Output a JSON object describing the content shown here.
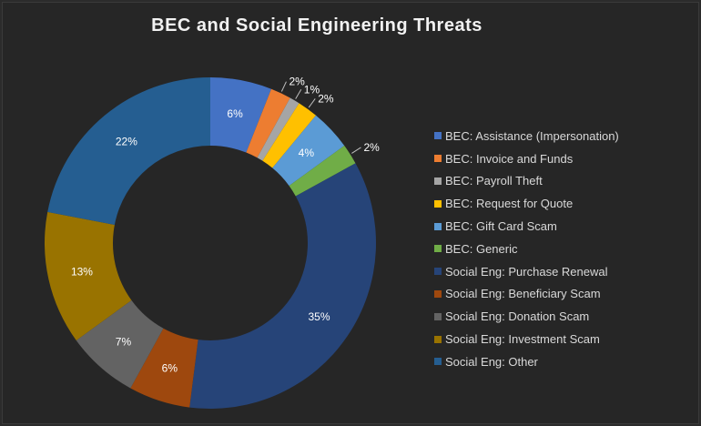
{
  "chart_data": {
    "type": "pie",
    "title": "BEC and Social Engineering Threats",
    "donut": true,
    "legend_position": "right",
    "slices": [
      {
        "label": "BEC: Assistance (Impersonation)",
        "value": 6,
        "display": "6%",
        "color": "#4472c4"
      },
      {
        "label": "BEC: Invoice and Funds",
        "value": 2,
        "display": "2%",
        "color": "#ed7d31"
      },
      {
        "label": "BEC: Payroll Theft",
        "value": 1,
        "display": "1%",
        "color": "#a5a5a5"
      },
      {
        "label": "BEC: Request for Quote",
        "value": 2,
        "display": "2%",
        "color": "#ffc000"
      },
      {
        "label": "BEC: Gift Card Scam",
        "value": 4,
        "display": "4%",
        "color": "#5b9bd5"
      },
      {
        "label": "BEC: Generic",
        "value": 2,
        "display": "2%",
        "color": "#70ad47"
      },
      {
        "label": "Social Eng: Purchase Renewal",
        "value": 35,
        "display": "35%",
        "color": "#264478"
      },
      {
        "label": "Social Eng: Beneficiary Scam",
        "value": 6,
        "display": "6%",
        "color": "#9e480e"
      },
      {
        "label": "Social Eng: Donation Scam",
        "value": 7,
        "display": "7%",
        "color": "#636363"
      },
      {
        "label": "Social Eng: Investment Scam",
        "value": 13,
        "display": "13%",
        "color": "#997300"
      },
      {
        "label": "Social Eng: Other",
        "value": 22,
        "display": "22%",
        "color": "#255e91"
      }
    ]
  }
}
